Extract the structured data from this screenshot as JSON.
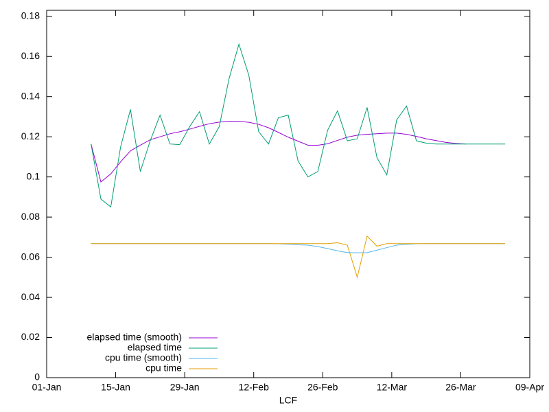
{
  "chart_data": {
    "type": "line",
    "x_label": "LCF",
    "x": [
      "10-Jan",
      "12-Jan",
      "14-Jan",
      "16-Jan",
      "18-Jan",
      "20-Jan",
      "22-Jan",
      "24-Jan",
      "26-Jan",
      "28-Jan",
      "30-Jan",
      "01-Feb",
      "03-Feb",
      "05-Feb",
      "07-Feb",
      "09-Feb",
      "11-Feb",
      "13-Feb",
      "15-Feb",
      "17-Feb",
      "19-Feb",
      "21-Feb",
      "23-Feb",
      "25-Feb",
      "27-Feb",
      "01-Mar",
      "03-Mar",
      "05-Mar",
      "07-Mar",
      "09-Mar",
      "11-Mar",
      "13-Mar",
      "15-Mar",
      "17-Mar",
      "19-Mar",
      "21-Mar",
      "23-Mar",
      "25-Mar",
      "27-Mar",
      "29-Mar",
      "31-Mar",
      "02-Apr",
      "04-Apr"
    ],
    "series": [
      {
        "name": "elapsed time (smooth)",
        "color": "#9400d3",
        "values": [
          0.1164,
          0.0975,
          0.1015,
          0.1075,
          0.113,
          0.1158,
          0.1185,
          0.12,
          0.1215,
          0.1225,
          0.1238,
          0.1252,
          0.1265,
          0.1273,
          0.1277,
          0.1277,
          0.1272,
          0.1262,
          0.1245,
          0.1222,
          0.1198,
          0.1178,
          0.1158,
          0.1158,
          0.1165,
          0.1182,
          0.1198,
          0.1208,
          0.1212,
          0.1215,
          0.1218,
          0.1218,
          0.1212,
          0.1202,
          0.119,
          0.1181,
          0.1172,
          0.1167,
          0.1164,
          null,
          null,
          null,
          null
        ]
      },
      {
        "name": "elapsed time",
        "color": "#009e73",
        "values": [
          0.1164,
          0.089,
          0.085,
          0.115,
          0.1336,
          0.1027,
          0.118,
          0.1308,
          0.1164,
          0.1161,
          0.125,
          0.1325,
          0.1164,
          0.125,
          0.149,
          0.1661,
          0.1507,
          0.1226,
          0.1164,
          0.1295,
          0.1308,
          0.1079,
          0.1,
          0.1027,
          0.1233,
          0.1329,
          0.118,
          0.119,
          0.1346,
          0.1096,
          0.101,
          0.1284,
          0.1353,
          0.118,
          0.1168,
          0.1164,
          0.1164,
          0.1164,
          0.1164,
          0.1164,
          0.1164,
          0.1164,
          0.1164
        ]
      },
      {
        "name": "cpu time (smooth)",
        "color": "#56b4e9",
        "values": [
          0.0668,
          0.0668,
          0.0668,
          0.0668,
          0.0668,
          0.0668,
          0.0668,
          0.0668,
          0.0668,
          0.0668,
          0.0668,
          0.0668,
          0.0668,
          0.0668,
          0.0668,
          0.0668,
          0.0668,
          0.0668,
          0.0668,
          0.0667,
          0.0665,
          0.0662,
          0.066,
          0.0653,
          0.0643,
          0.0632,
          0.0623,
          0.0622,
          0.0623,
          0.0635,
          0.0648,
          0.066,
          0.0664,
          0.0667,
          0.0668,
          0.0668,
          0.0668,
          0.0668,
          0.0668,
          0.0668,
          0.0668,
          0.0668,
          0.0668
        ]
      },
      {
        "name": "cpu time",
        "color": "#e69f00",
        "values": [
          0.0668,
          0.0668,
          0.0668,
          0.0668,
          0.0668,
          0.0668,
          0.0668,
          0.0668,
          0.0668,
          0.0668,
          0.0668,
          0.0668,
          0.0668,
          0.0668,
          0.0668,
          0.0668,
          0.0668,
          0.0668,
          0.0668,
          0.0668,
          0.0668,
          0.0668,
          0.0668,
          0.0668,
          0.0668,
          0.0672,
          0.066,
          0.05,
          0.0705,
          0.0655,
          0.0668,
          0.0668,
          0.0668,
          0.0668,
          0.0668,
          0.0668,
          0.0668,
          0.0668,
          0.0668,
          0.0668,
          0.0668,
          0.0668,
          0.0668
        ]
      }
    ],
    "xlim": [
      "01-Jan",
      "09-Apr"
    ],
    "xticks": [
      "01-Jan",
      "15-Jan",
      "29-Jan",
      "12-Feb",
      "26-Feb",
      "12-Mar",
      "26-Mar",
      "09-Apr"
    ],
    "ylim": [
      0,
      0.183
    ],
    "yticks": [
      0,
      0.02,
      0.04,
      0.06,
      0.08,
      0.1,
      0.12,
      0.14,
      0.16,
      0.18
    ],
    "legend": "bottom-left",
    "grid": false
  }
}
